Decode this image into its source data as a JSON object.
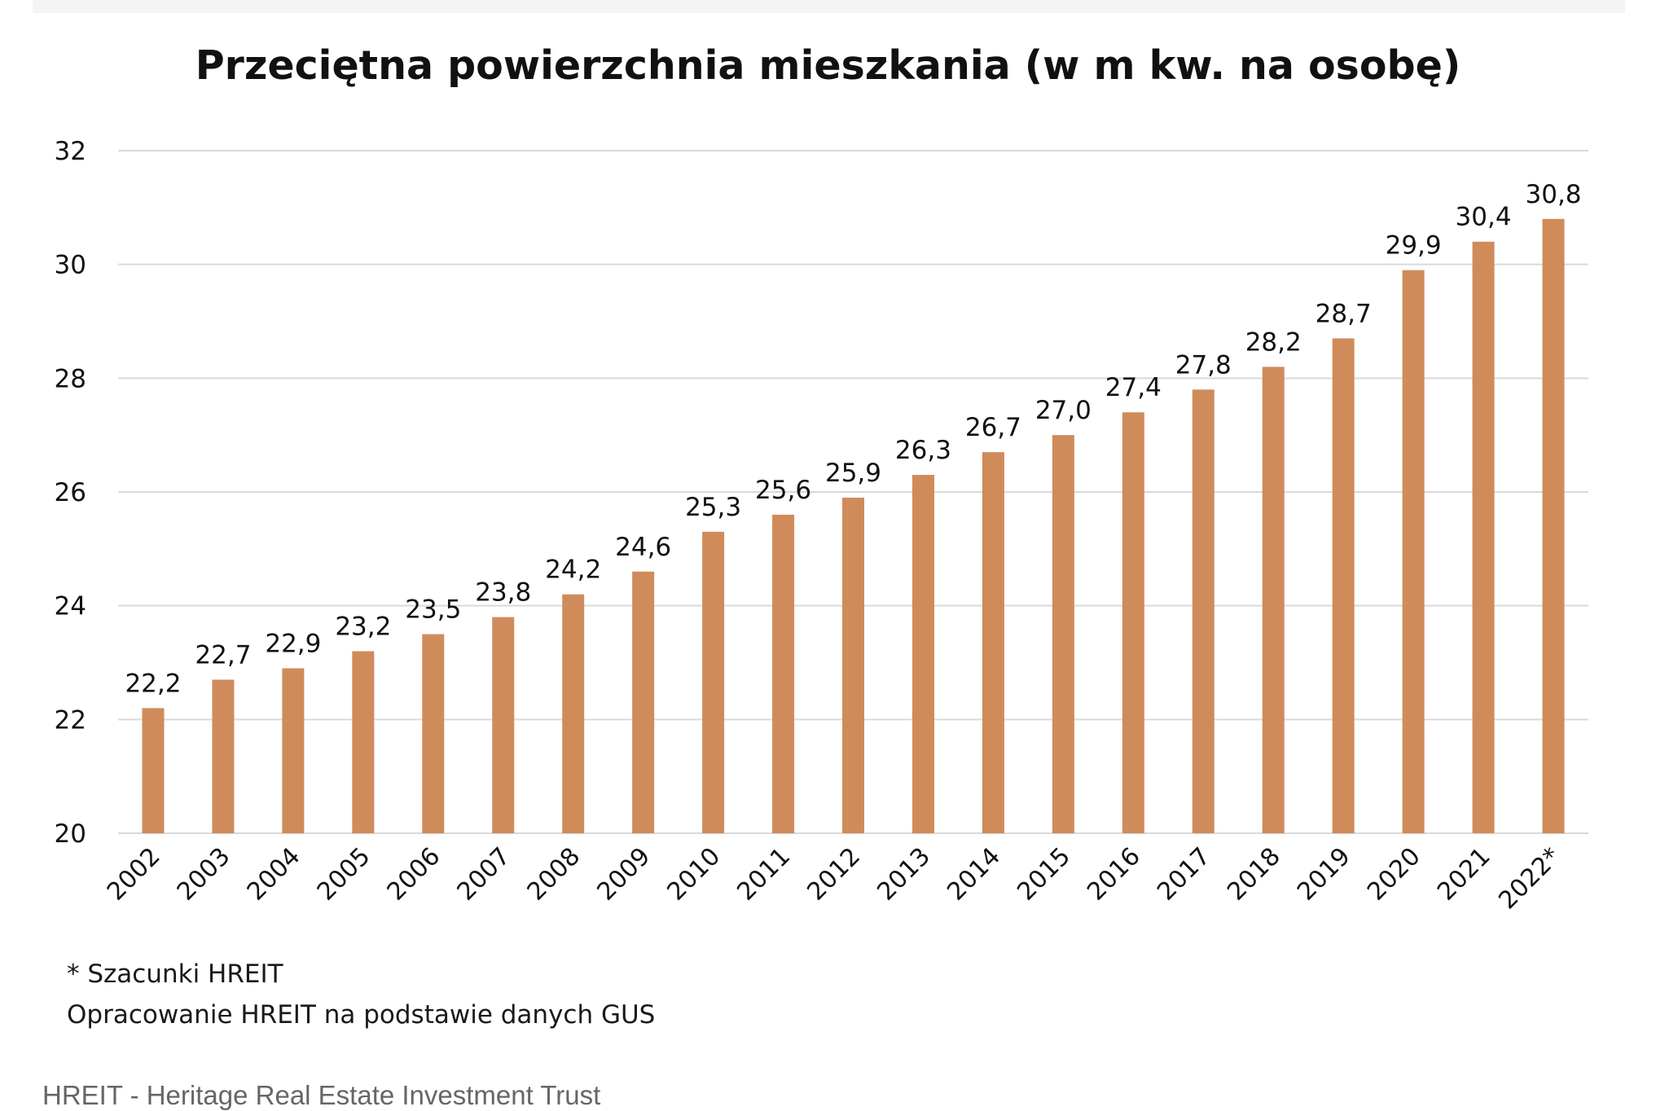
{
  "colors": {
    "bar": "#D08B5B",
    "grid": "#D9D9D9",
    "text": "#111111",
    "caption": "#666666"
  },
  "chart_data": {
    "type": "bar",
    "title": "Przeciętna powierzchnia mieszkania (w m kw. na osobę)",
    "categories": [
      "2002",
      "2003",
      "2004",
      "2005",
      "2006",
      "2007",
      "2008",
      "2009",
      "2010",
      "2011",
      "2012",
      "2013",
      "2014",
      "2015",
      "2016",
      "2017",
      "2018",
      "2019",
      "2020",
      "2021",
      "2022*"
    ],
    "values": [
      22.2,
      22.7,
      22.9,
      23.2,
      23.5,
      23.8,
      24.2,
      24.6,
      25.3,
      25.6,
      25.9,
      26.3,
      26.7,
      27.0,
      27.4,
      27.8,
      28.2,
      28.7,
      29.9,
      30.4,
      30.8
    ],
    "value_labels": [
      "22,2",
      "22,7",
      "22,9",
      "23,2",
      "23,5",
      "23,8",
      "24,2",
      "24,6",
      "25,3",
      "25,6",
      "25,9",
      "26,3",
      "26,7",
      "27,0",
      "27,4",
      "27,8",
      "28,2",
      "28,7",
      "29,9",
      "30,4",
      "30,8"
    ],
    "yticks": [
      "20",
      "22",
      "24",
      "26",
      "28",
      "30",
      "32"
    ],
    "ylim": [
      20,
      32
    ],
    "xlabel": "",
    "ylabel": "",
    "grid": true,
    "legend": "none"
  },
  "notes": {
    "estimate": "* Szacunki HREIT",
    "source": "Opracowanie HREIT na podstawie danych GUS"
  },
  "caption": "HREIT - Heritage Real Estate Investment Trust"
}
